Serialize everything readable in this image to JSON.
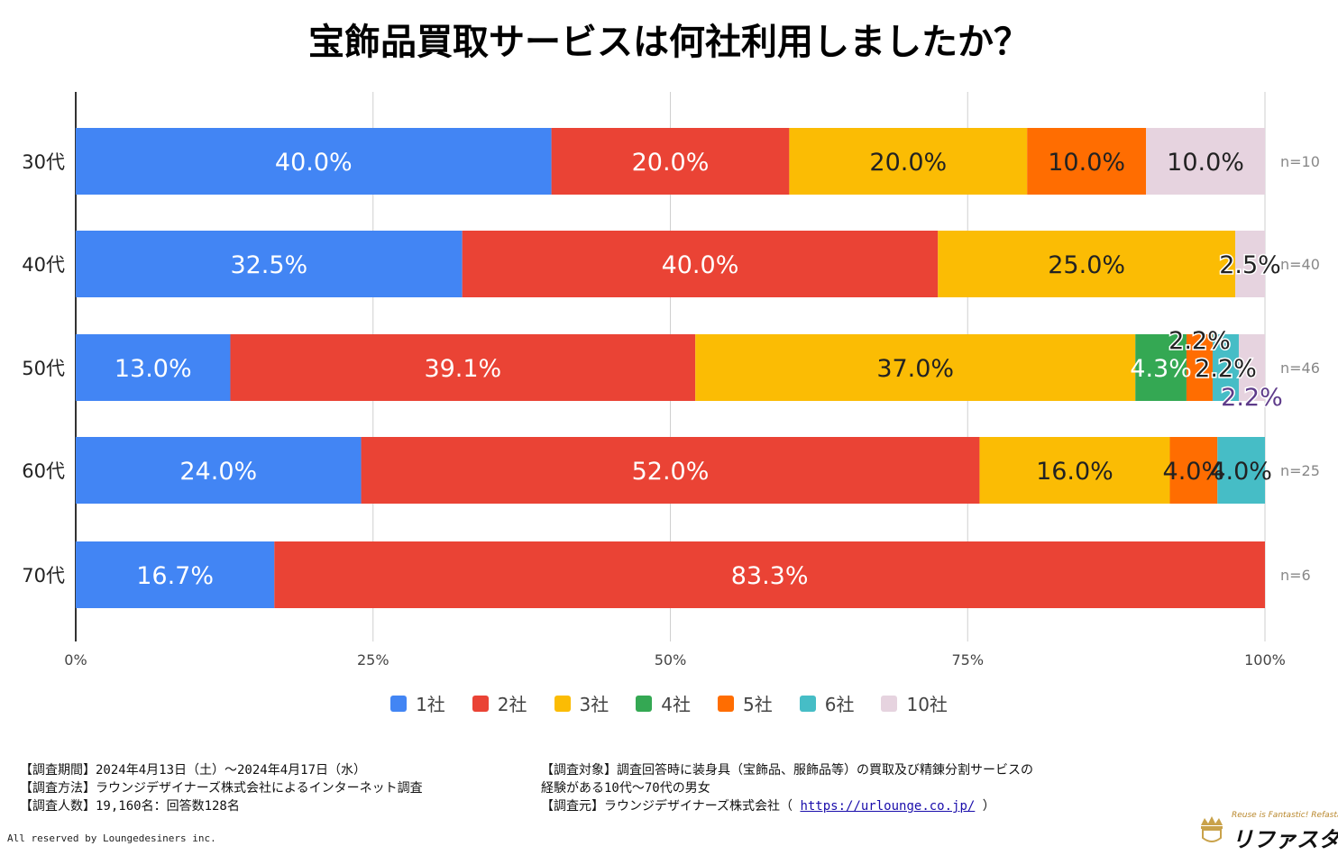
{
  "title": "宝飾品買取サービスは何社利用しましたか？",
  "chart_data": {
    "type": "bar",
    "orientation": "horizontal",
    "stacked": true,
    "percent_stacked": true,
    "categories": [
      "30代",
      "40代",
      "50代",
      "60代",
      "70代"
    ],
    "sample_sizes": [
      "n=10",
      "n=40",
      "n=46",
      "n=25",
      "n=6"
    ],
    "series": [
      {
        "name": "1社",
        "color": "#4285f4",
        "label_color": "#ffffff",
        "values": [
          40.0,
          32.5,
          13.0,
          24.0,
          16.7
        ],
        "labels": [
          "40.0%",
          "32.5%",
          "13.0%",
          "24.0%",
          "16.7%"
        ]
      },
      {
        "name": "2社",
        "color": "#ea4335",
        "label_color": "#ffffff",
        "values": [
          20.0,
          40.0,
          39.1,
          52.0,
          83.3
        ],
        "labels": [
          "20.0%",
          "40.0%",
          "39.1%",
          "52.0%",
          "83.3%"
        ]
      },
      {
        "name": "3社",
        "color": "#fbbc04",
        "label_color": "#222222",
        "values": [
          20.0,
          25.0,
          37.0,
          16.0,
          0
        ],
        "labels": [
          "20.0%",
          "25.0%",
          "37.0%",
          "16.0%",
          ""
        ]
      },
      {
        "name": "4社",
        "color": "#34a853",
        "label_color": "#ffffff",
        "values": [
          0,
          0,
          4.3,
          0,
          0
        ],
        "labels": [
          "",
          "",
          "4.3%",
          "",
          ""
        ]
      },
      {
        "name": "5社",
        "color": "#ff6d01",
        "label_color": "#222222",
        "values": [
          10.0,
          0,
          2.2,
          4.0,
          0
        ],
        "labels": [
          "10.0%",
          "",
          "2.2%",
          "4.0%",
          ""
        ]
      },
      {
        "name": "6社",
        "color": "#46bdc6",
        "label_color": "#222222",
        "values": [
          0,
          0,
          2.2,
          4.0,
          0
        ],
        "labels": [
          "",
          "",
          "2.2%",
          "4.0%",
          ""
        ]
      },
      {
        "name": "10社",
        "color": "#e6d3df",
        "label_color": "#222222",
        "values": [
          10.0,
          2.5,
          2.2,
          0,
          0
        ],
        "labels": [
          "10.0%",
          "2.5%",
          "2.2%",
          "",
          ""
        ]
      }
    ],
    "x_ticks": [
      "0%",
      "25%",
      "50%",
      "75%",
      "100%"
    ],
    "xlim": [
      0,
      100
    ],
    "legend_position": "bottom"
  },
  "footer": {
    "left_lines": [
      "【調査期間】2024年4月13日（土）～2024年4月17日（水）",
      "【調査方法】ラウンジデザイナーズ株式会社によるインターネット調査",
      "【調査人数】19,160名：回答数128名"
    ],
    "target_line1": "【調査対象】調査回答時に装身具（宝飾品、服飾品等）の買取及び精錬分割サービスの",
    "target_line2": "経験がある10代～70代の男女",
    "source_prefix": "【調査元】ラウンジデザイナーズ株式会社（ ",
    "source_url": "https://urlounge.co.jp/",
    "source_suffix": " ）"
  },
  "copyright": "All reserved by Loungedesiners inc.",
  "logo": {
    "tagline": "Reuse is Fantastic! Refasta",
    "brand": "リファスタ"
  }
}
